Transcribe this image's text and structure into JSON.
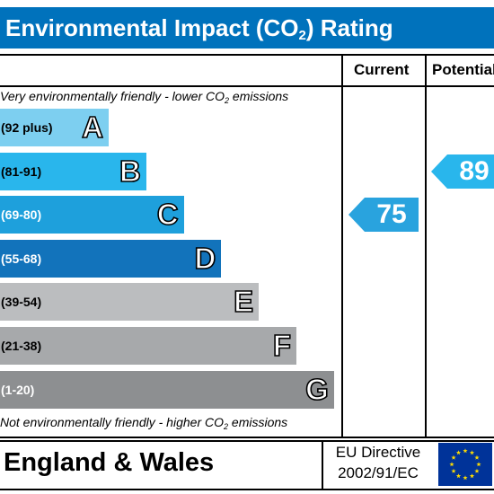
{
  "title": {
    "main": "Environmental Impact (CO",
    "sub": "2",
    "tail": ") Rating"
  },
  "columns": {
    "current": "Current",
    "potential": "Potential"
  },
  "top_note": {
    "pre": "Very environmentally friendly - lower CO",
    "sub": "2",
    "post": " emissions"
  },
  "bottom_note": {
    "pre": "Not environmentally friendly - higher CO",
    "sub": "2",
    "post": " emissions"
  },
  "footer": {
    "region": "England & Wales",
    "directive_line1": "EU Directive",
    "directive_line2": "2002/91/EC"
  },
  "chart_data": {
    "type": "bar",
    "title": "Environmental Impact (CO2) Rating",
    "bands": [
      {
        "letter": "A",
        "range": "(92 plus)",
        "color": "#7dcff0"
      },
      {
        "letter": "B",
        "range": "(81-91)",
        "color": "#29b6ec"
      },
      {
        "letter": "C",
        "range": "(69-80)",
        "color": "#1ea0dc"
      },
      {
        "letter": "D",
        "range": "(55-68)",
        "color": "#1273bb"
      },
      {
        "letter": "E",
        "range": "(39-54)",
        "color": "#bbbdbf"
      },
      {
        "letter": "F",
        "range": "(21-38)",
        "color": "#a7a9ab"
      },
      {
        "letter": "G",
        "range": "(1-20)",
        "color": "#8d8f91"
      }
    ],
    "current": {
      "value": 75,
      "band": "C",
      "color": "#29a3de"
    },
    "potential": {
      "value": 89,
      "band": "B",
      "color": "#29b6ec"
    }
  },
  "colors": {
    "header": "#0072bc",
    "eu_flag": "#003399",
    "eu_stars": "#ffdd00"
  }
}
